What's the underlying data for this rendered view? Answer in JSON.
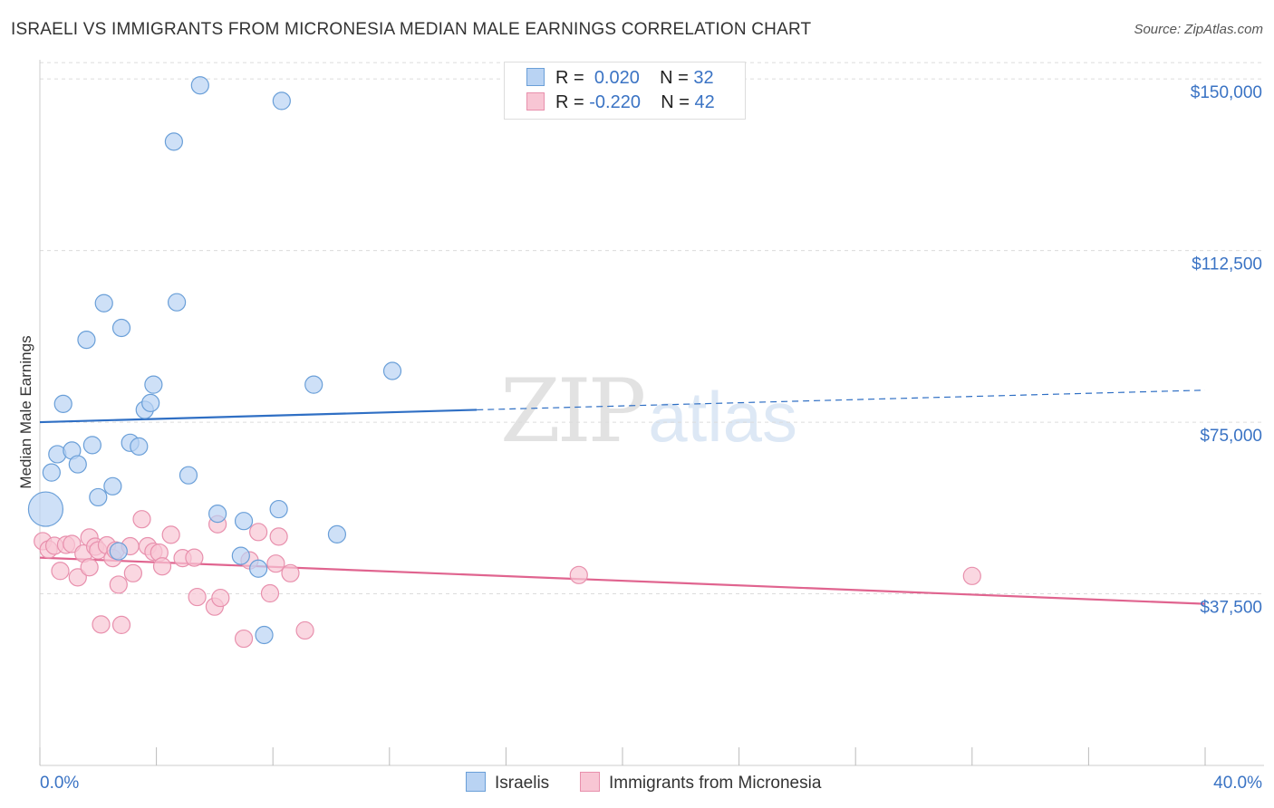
{
  "title": "ISRAELI VS IMMIGRANTS FROM MICRONESIA MEDIAN MALE EARNINGS CORRELATION CHART",
  "source": "Source: ZipAtlas.com",
  "watermark": {
    "zip": "ZIP",
    "atlas": "atlas"
  },
  "legend": {
    "rows": [
      {
        "r_label": "R =",
        "r_value": "0.020",
        "n_label": "N =",
        "n_value": "32"
      },
      {
        "r_label": "R =",
        "r_value": "-0.220",
        "n_label": "N =",
        "n_value": "42"
      }
    ]
  },
  "bottom_legend": {
    "israelis": "Israelis",
    "micronesia": "Immigrants from Micronesia"
  },
  "colors": {
    "blue_fill": "#b9d3f3",
    "blue_stroke": "#6a9fd8",
    "blue_line": "#2f6fc4",
    "pink_fill": "#f8c6d4",
    "pink_stroke": "#e890ad",
    "pink_line": "#e0648f",
    "axis_text": "#3a73c4"
  },
  "chart_data": {
    "type": "scatter",
    "title": "ISRAELI VS IMMIGRANTS FROM MICRONESIA MEDIAN MALE EARNINGS CORRELATION CHART",
    "xlabel": "",
    "ylabel": "Median Male Earnings",
    "xlim": [
      0,
      40
    ],
    "ylim": [
      0,
      153000
    ],
    "x_tick_labels": [
      "0.0%",
      "40.0%"
    ],
    "y_ticks": [
      37500,
      75000,
      112500,
      150000
    ],
    "y_tick_labels": [
      "$37,500",
      "$75,000",
      "$112,500",
      "$150,000"
    ],
    "series": [
      {
        "name": "Israelis",
        "r": 0.02,
        "n": 32,
        "points": [
          [
            0.2,
            56000,
            20
          ],
          [
            0.4,
            64000,
            10
          ],
          [
            0.6,
            68000,
            10
          ],
          [
            0.8,
            79000,
            10
          ],
          [
            1.1,
            68800,
            10
          ],
          [
            1.3,
            65800,
            10
          ],
          [
            1.6,
            93000,
            10
          ],
          [
            1.8,
            70000,
            10
          ],
          [
            2.0,
            58600,
            10
          ],
          [
            2.2,
            101000,
            10
          ],
          [
            2.5,
            61000,
            10
          ],
          [
            2.7,
            46800,
            10
          ],
          [
            2.8,
            95600,
            10
          ],
          [
            3.1,
            70500,
            10
          ],
          [
            3.4,
            69700,
            10
          ],
          [
            3.6,
            77700,
            10
          ],
          [
            3.8,
            79200,
            10
          ],
          [
            3.9,
            83200,
            10
          ],
          [
            4.6,
            136300,
            10
          ],
          [
            4.7,
            101200,
            10
          ],
          [
            5.1,
            63400,
            10
          ],
          [
            5.5,
            148600,
            10
          ],
          [
            6.1,
            55000,
            10
          ],
          [
            6.9,
            45800,
            10
          ],
          [
            7.0,
            53400,
            10
          ],
          [
            7.5,
            43000,
            10
          ],
          [
            7.7,
            28500,
            10
          ],
          [
            8.2,
            56000,
            10
          ],
          [
            8.3,
            145200,
            10
          ],
          [
            9.4,
            83200,
            10
          ],
          [
            10.2,
            50500,
            10
          ],
          [
            12.1,
            86200,
            10
          ]
        ],
        "trend": {
          "x0": 0,
          "y0": 75000,
          "x1": 15.0,
          "y1": 77700,
          "dash_x1": 40,
          "dash_y1": 82000
        }
      },
      {
        "name": "Immigrants from Micronesia",
        "r": -0.22,
        "n": 42,
        "points": [
          [
            0.1,
            49000,
            10
          ],
          [
            0.3,
            47200,
            10
          ],
          [
            0.5,
            48000,
            10
          ],
          [
            0.7,
            42500,
            10
          ],
          [
            0.9,
            48200,
            10
          ],
          [
            1.1,
            48400,
            10
          ],
          [
            1.3,
            41100,
            10
          ],
          [
            1.5,
            46300,
            10
          ],
          [
            1.7,
            43300,
            10
          ],
          [
            1.7,
            49800,
            10
          ],
          [
            1.9,
            47800,
            10
          ],
          [
            2.0,
            47000,
            10
          ],
          [
            2.1,
            30800,
            10
          ],
          [
            2.3,
            48100,
            10
          ],
          [
            2.5,
            45300,
            10
          ],
          [
            2.6,
            47000,
            10
          ],
          [
            2.7,
            39500,
            10
          ],
          [
            2.8,
            30700,
            10
          ],
          [
            3.1,
            47900,
            10
          ],
          [
            3.2,
            42000,
            10
          ],
          [
            3.5,
            53800,
            10
          ],
          [
            3.7,
            47900,
            10
          ],
          [
            3.9,
            46700,
            10
          ],
          [
            4.1,
            46500,
            10
          ],
          [
            4.2,
            43500,
            10
          ],
          [
            4.5,
            50400,
            10
          ],
          [
            4.9,
            45300,
            10
          ],
          [
            5.3,
            45400,
            10
          ],
          [
            5.4,
            36800,
            10
          ],
          [
            6.0,
            34700,
            10
          ],
          [
            6.2,
            36600,
            10
          ],
          [
            6.1,
            52700,
            10
          ],
          [
            7.0,
            27700,
            10
          ],
          [
            7.2,
            44800,
            10
          ],
          [
            7.5,
            51000,
            10
          ],
          [
            7.9,
            37600,
            10
          ],
          [
            8.1,
            44100,
            10
          ],
          [
            8.2,
            50000,
            10
          ],
          [
            8.6,
            42000,
            10
          ],
          [
            9.1,
            29500,
            10
          ],
          [
            18.5,
            41600,
            10
          ],
          [
            32.0,
            41400,
            10
          ]
        ],
        "trend": {
          "x0": 0,
          "y0": 45400,
          "x1": 40,
          "y1": 35300
        }
      }
    ]
  }
}
